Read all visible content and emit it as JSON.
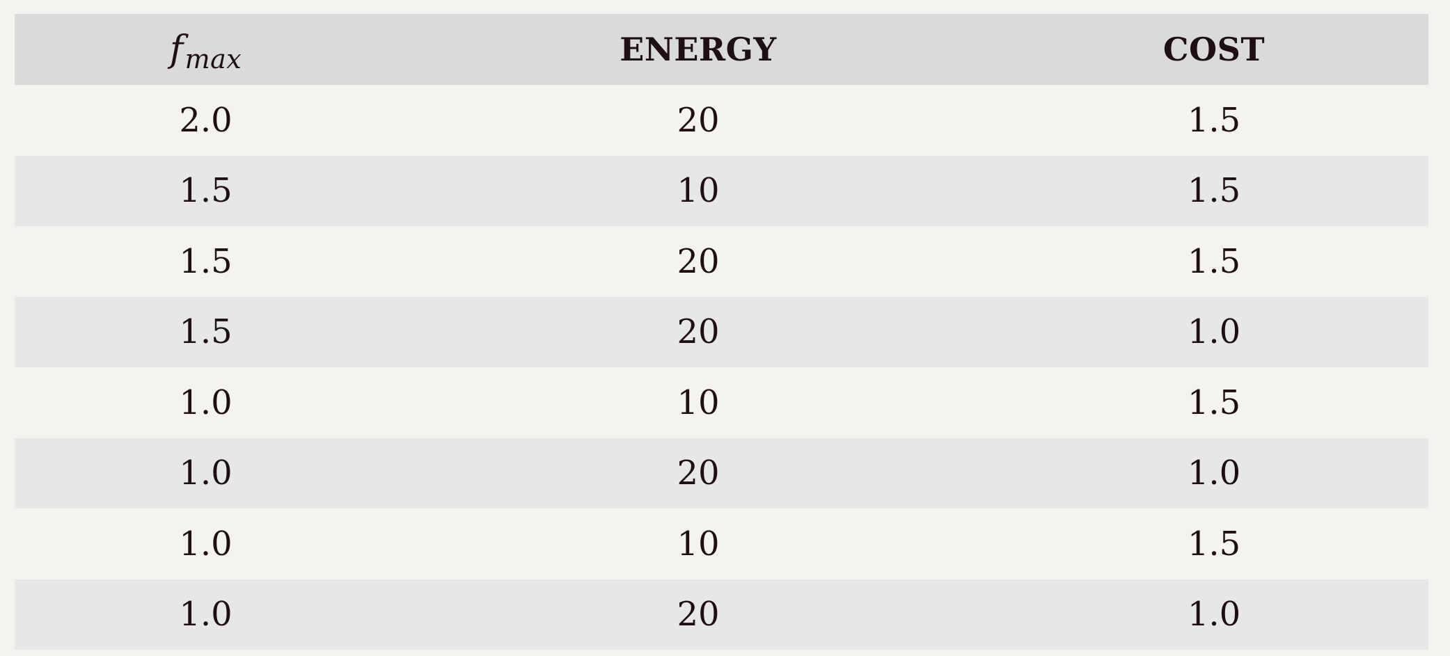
{
  "table": {
    "headers": [
      {
        "base": "f",
        "sub": "max"
      },
      {
        "label": "ENERGY"
      },
      {
        "label": "COST"
      }
    ],
    "rows": [
      [
        "2.0",
        "20",
        "1.5"
      ],
      [
        "1.5",
        "10",
        "1.5"
      ],
      [
        "1.5",
        "20",
        "1.5"
      ],
      [
        "1.5",
        "20",
        "1.0"
      ],
      [
        "1.0",
        "10",
        "1.5"
      ],
      [
        "1.0",
        "20",
        "1.0"
      ],
      [
        "1.0",
        "10",
        "1.5"
      ],
      [
        "1.0",
        "20",
        "1.0"
      ]
    ]
  },
  "colors": {
    "page_background": "#f4f3f0",
    "header_background": "#dadada",
    "stripe_background": "#e7e7e7",
    "text": "#1e1012"
  }
}
